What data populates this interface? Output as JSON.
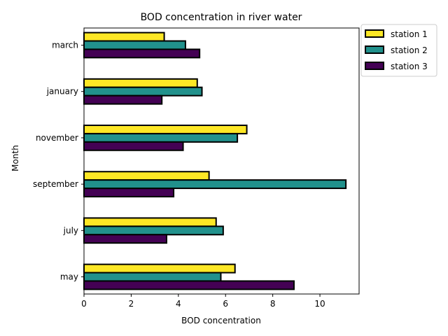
{
  "chart_data": {
    "type": "bar",
    "orientation": "horizontal",
    "title": "BOD concentration in river water",
    "xlabel": "BOD concentration",
    "ylabel": "Month",
    "categories": [
      "may",
      "july",
      "september",
      "november",
      "january",
      "march"
    ],
    "series": [
      {
        "name": "station 1",
        "color": "#fde725",
        "values": [
          6.4,
          5.6,
          5.3,
          6.9,
          4.8,
          3.4
        ]
      },
      {
        "name": "station 2",
        "color": "#21918c",
        "values": [
          5.8,
          5.9,
          11.1,
          6.5,
          5.0,
          4.3
        ]
      },
      {
        "name": "station 3",
        "color": "#440154",
        "values": [
          8.9,
          3.5,
          3.8,
          4.2,
          3.3,
          4.9
        ]
      }
    ],
    "xlim": [
      0,
      11.66
    ],
    "xticks": [
      0,
      2,
      4,
      6,
      8,
      10
    ],
    "grid": false,
    "legend_position": "outside-top-right",
    "bar_edge_color": "#000000"
  }
}
